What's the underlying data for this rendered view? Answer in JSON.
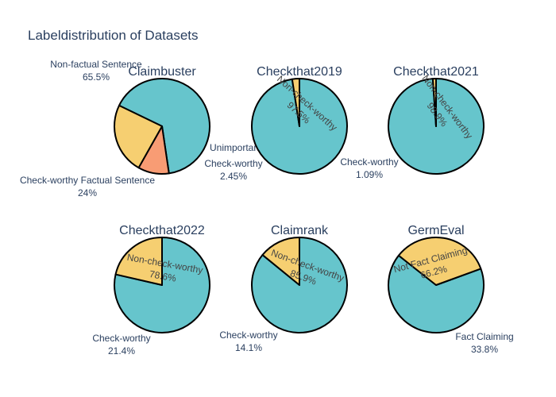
{
  "chart_data": {
    "type": "pie",
    "title": "Labeldistribution of Datasets",
    "colors": {
      "teal": "#66c5cc",
      "yellow": "#f6cf71",
      "salmon": "#f89c74"
    },
    "charts": [
      {
        "title": "Claimbuster",
        "slices": [
          {
            "label": "Non-factual Sentence",
            "percent": "65.5%",
            "value": 65.5,
            "color": "#66c5cc"
          },
          {
            "label": "Unimportant Factual Sentence",
            "percent": "10.5%",
            "value": 10.5,
            "color": "#f89c74"
          },
          {
            "label": "Check-worthy Factual Sentence",
            "percent": "24%",
            "value": 24.0,
            "color": "#f6cf71"
          }
        ]
      },
      {
        "title": "Checkthat2019",
        "slices": [
          {
            "label": "Non-check-worthy",
            "percent": "97.5%",
            "value": 97.55,
            "color": "#66c5cc"
          },
          {
            "label": "Check-worthy",
            "percent": "2.45%",
            "value": 2.45,
            "color": "#f6cf71"
          }
        ]
      },
      {
        "title": "Checkthat2021",
        "slices": [
          {
            "label": "Non-check-worthy",
            "percent": "98.9%",
            "value": 98.91,
            "color": "#66c5cc"
          },
          {
            "label": "Check-worthy",
            "percent": "1.09%",
            "value": 1.09,
            "color": "#f6cf71"
          }
        ]
      },
      {
        "title": "Checkthat2022",
        "slices": [
          {
            "label": "Non-check-worthy",
            "percent": "78.6%",
            "value": 78.6,
            "color": "#66c5cc"
          },
          {
            "label": "Check-worthy",
            "percent": "21.4%",
            "value": 21.4,
            "color": "#f6cf71"
          }
        ]
      },
      {
        "title": "Claimrank",
        "slices": [
          {
            "label": "Non-check-worthy",
            "percent": "85.9%",
            "value": 85.9,
            "color": "#66c5cc"
          },
          {
            "label": "Check-worthy",
            "percent": "14.1%",
            "value": 14.1,
            "color": "#f6cf71"
          }
        ]
      },
      {
        "title": "GermEval",
        "slices": [
          {
            "label": "Not Fact Claiming",
            "percent": "66.2%",
            "value": 66.2,
            "color": "#66c5cc"
          },
          {
            "label": "Fact Claiming",
            "percent": "33.8%",
            "value": 33.8,
            "color": "#f6cf71"
          }
        ]
      }
    ]
  }
}
